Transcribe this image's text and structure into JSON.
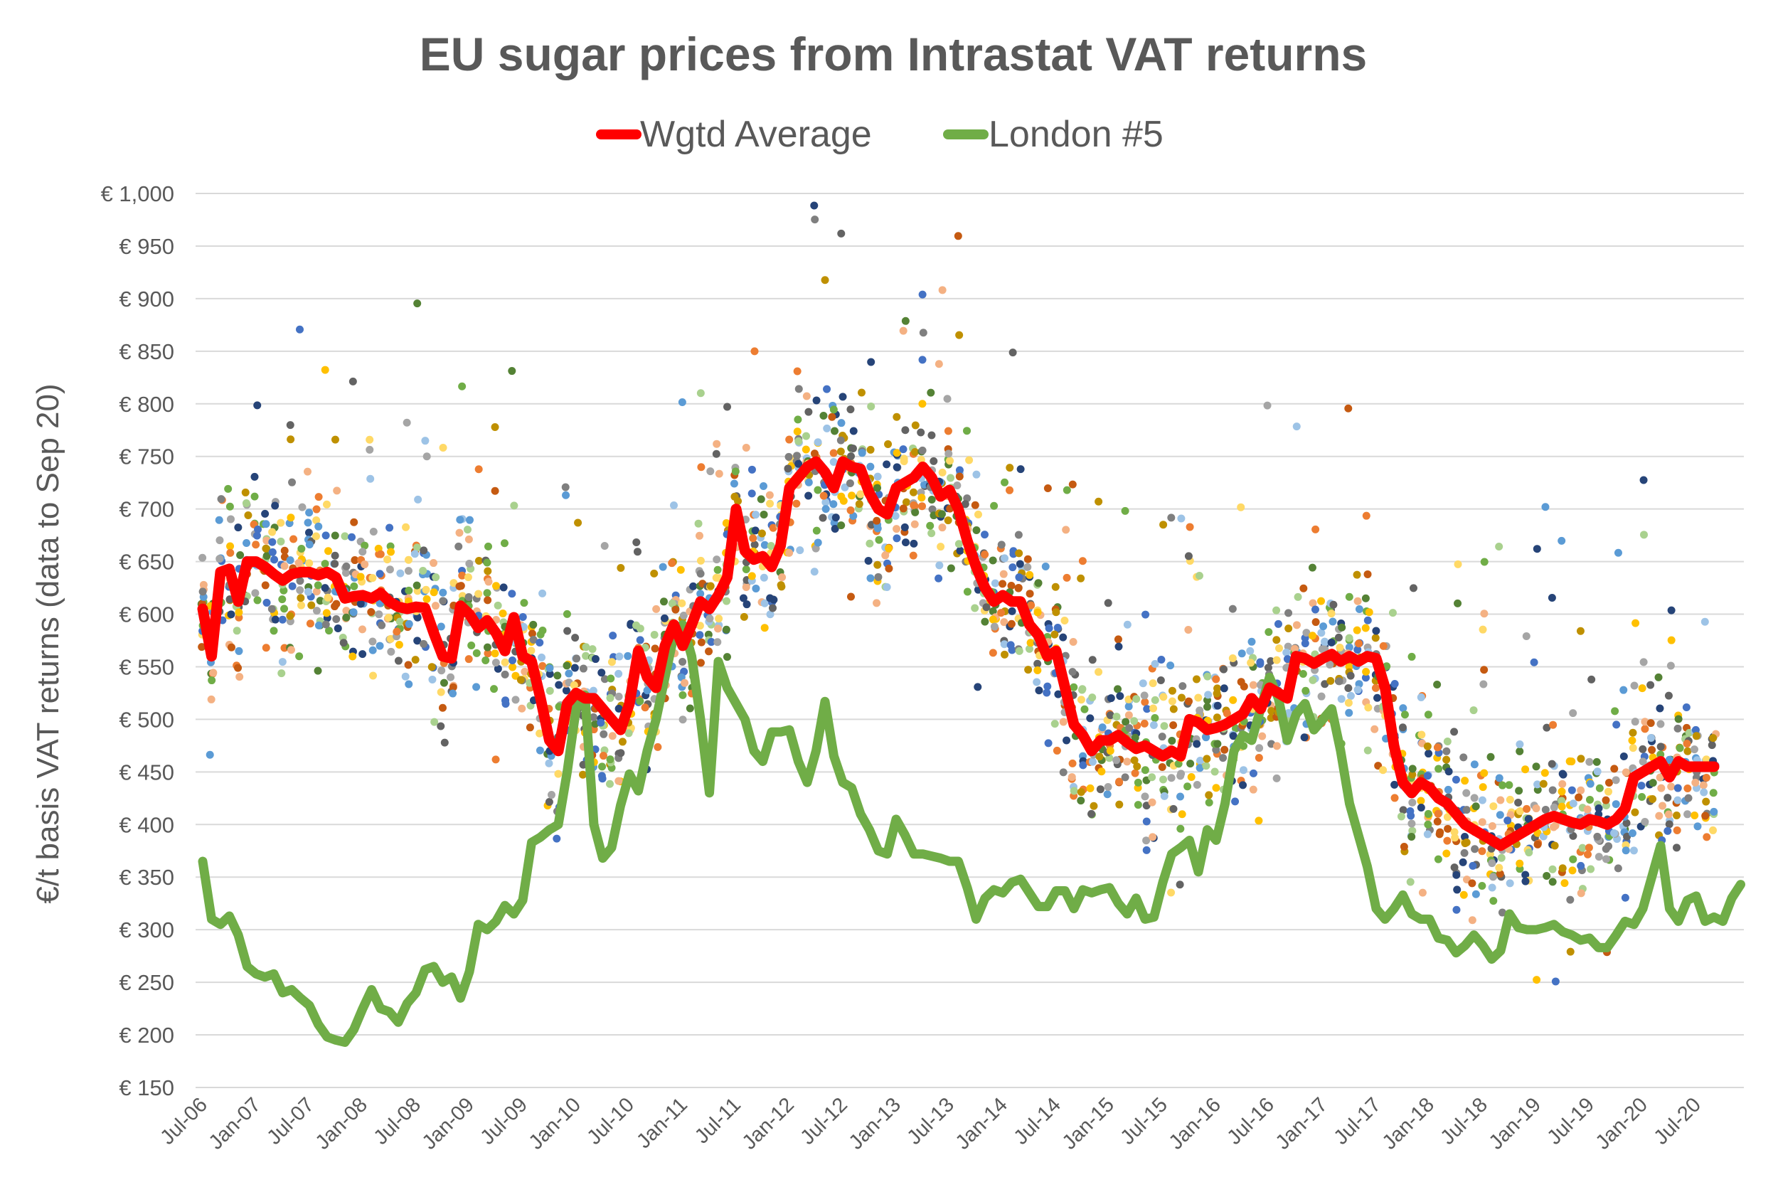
{
  "chart_data": {
    "type": "line",
    "title": "EU sugar prices from Intrastat VAT returns",
    "xlabel": "",
    "ylabel": "€/t basis VAT returns (data to Sep 20)",
    "ylim": [
      150,
      1000
    ],
    "ytick_step": 50,
    "ytick_labels": [
      "€ 150",
      "€ 200",
      "€ 250",
      "€ 300",
      "€ 350",
      "€ 400",
      "€ 450",
      "€ 500",
      "€ 550",
      "€ 600",
      "€ 650",
      "€ 700",
      "€ 750",
      "€ 800",
      "€ 850",
      "€ 900",
      "€ 950",
      "€ 1,000"
    ],
    "xtick_labels": [
      "Jul-06",
      "Jan-07",
      "Jul-07",
      "Jan-08",
      "Jul-08",
      "Jan-09",
      "Jul-09",
      "Jan-10",
      "Jul-10",
      "Jan-11",
      "Jul-11",
      "Jan-12",
      "Jul-12",
      "Jan-13",
      "Jul-13",
      "Jan-14",
      "Jul-14",
      "Jan-15",
      "Jul-15",
      "Jan-16",
      "Jul-16",
      "Jan-17",
      "Jul-17",
      "Jan-18",
      "Jul-18",
      "Jan-19",
      "Jul-19",
      "Jan-20",
      "Jul-20"
    ],
    "x_frequency": "monthly",
    "grid": true,
    "legend": "top",
    "series": [
      {
        "name": "Wgtd Average",
        "color": "#FF0000",
        "start": "Jul-06",
        "values": [
          605,
          560,
          640,
          643,
          612,
          650,
          650,
          645,
          638,
          632,
          638,
          640,
          640,
          637,
          640,
          635,
          615,
          617,
          618,
          615,
          620,
          612,
          607,
          605,
          607,
          606,
          582,
          560,
          558,
          608,
          600,
          587,
          594,
          582,
          565,
          597,
          560,
          555,
          520,
          480,
          470,
          515,
          525,
          520,
          520,
          510,
          500,
          490,
          515,
          565,
          540,
          530,
          570,
          590,
          570,
          590,
          612,
          605,
          618,
          635,
          700,
          660,
          652,
          655,
          645,
          665,
          720,
          730,
          740,
          745,
          735,
          720,
          745,
          740,
          738,
          715,
          700,
          695,
          720,
          725,
          730,
          740,
          730,
          712,
          718,
          700,
          670,
          645,
          625,
          612,
          618,
          612,
          612,
          590,
          580,
          560,
          565,
          530,
          495,
          485,
          470,
          480,
          480,
          485,
          478,
          472,
          475,
          470,
          465,
          470,
          465,
          500,
          497,
          490,
          492,
          495,
          500,
          505,
          520,
          510,
          530,
          525,
          520,
          560,
          558,
          553,
          558,
          562,
          555,
          560,
          555,
          560,
          558,
          530,
          475,
          440,
          430,
          440,
          435,
          425,
          420,
          410,
          400,
          395,
          390,
          385,
          380,
          385,
          390,
          395,
          400,
          405,
          408,
          405,
          402,
          400,
          405,
          403,
          400,
          405,
          415,
          445,
          450,
          455,
          460,
          445,
          460,
          455,
          455,
          455,
          455
        ]
      },
      {
        "name": "London #5",
        "color": "#70AD47",
        "start": "Jul-06",
        "values": [
          365,
          310,
          305,
          313,
          295,
          265,
          258,
          255,
          258,
          240,
          243,
          235,
          228,
          210,
          198,
          195,
          193,
          205,
          225,
          243,
          225,
          222,
          212,
          230,
          240,
          262,
          265,
          250,
          255,
          235,
          260,
          305,
          300,
          308,
          323,
          315,
          328,
          383,
          388,
          395,
          400,
          450,
          510,
          523,
          400,
          368,
          378,
          418,
          448,
          432,
          470,
          500,
          540,
          580,
          590,
          560,
          500,
          430,
          555,
          530,
          515,
          500,
          470,
          460,
          488,
          488,
          490,
          460,
          440,
          470,
          517,
          465,
          440,
          435,
          410,
          395,
          375,
          372,
          405,
          390,
          372,
          372,
          370,
          368,
          365,
          365,
          340,
          310,
          330,
          338,
          335,
          345,
          348,
          335,
          322,
          322,
          337,
          337,
          320,
          338,
          335,
          338,
          340,
          325,
          315,
          330,
          310,
          312,
          345,
          372,
          378,
          385,
          355,
          395,
          385,
          420,
          470,
          485,
          480,
          510,
          540,
          520,
          480,
          505,
          515,
          490,
          500,
          510,
          470,
          420,
          390,
          360,
          320,
          310,
          320,
          333,
          315,
          310,
          310,
          292,
          290,
          278,
          285,
          295,
          285,
          272,
          280,
          315,
          302,
          300,
          300,
          302,
          305,
          298,
          295,
          290,
          292,
          283,
          283,
          295,
          308,
          305,
          320,
          350,
          380,
          320,
          308,
          328,
          332,
          308,
          312,
          308,
          330,
          343
        ]
      }
    ],
    "scatter_palette": [
      "#4472C4",
      "#5B9BD5",
      "#264478",
      "#9DC3E6",
      "#ED7D31",
      "#F4B183",
      "#C55A11",
      "#FFC000",
      "#FFD966",
      "#BF9000",
      "#70AD47",
      "#A9D18E",
      "#548235",
      "#A5A5A5",
      "#7F7F7F",
      "#636363"
    ]
  }
}
